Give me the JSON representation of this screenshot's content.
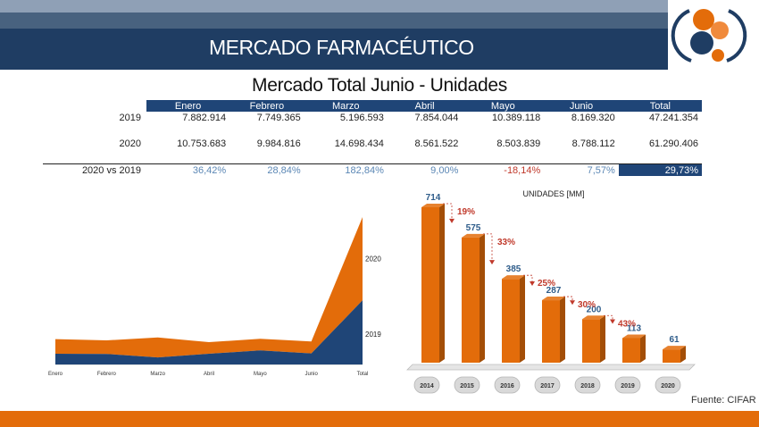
{
  "header": {
    "title": "MERCADO FARMACÉUTICO"
  },
  "subtitle": "Mercado Total Junio - Unidades",
  "table": {
    "columns": [
      "Enero",
      "Febrero",
      "Marzo",
      "Abril",
      "Mayo",
      "Junio",
      "Total"
    ],
    "rows": [
      {
        "label": "2019",
        "values": [
          "7.882.914",
          "7.749.365",
          "5.196.593",
          "7.854.044",
          "10.389.118",
          "8.169.320",
          "47.241.354"
        ]
      },
      {
        "label": "2020",
        "values": [
          "10.753.683",
          "9.984.816",
          "14.698.434",
          "8.561.522",
          "8.503.839",
          "8.788.112",
          "61.290.406"
        ]
      }
    ],
    "pct_row": {
      "label": "2020 vs 2019",
      "values": [
        "36,42%",
        "28,84%",
        "182,84%",
        "9,00%",
        "-18,14%",
        "7,57%",
        "29,73%"
      ]
    }
  },
  "chart_data": [
    {
      "type": "area",
      "stacked": true,
      "categories": [
        "Enero",
        "Febrero",
        "Marzo",
        "Abril",
        "Mayo",
        "Junio",
        "Total"
      ],
      "series": [
        {
          "name": "2019",
          "values": [
            7882914,
            7749365,
            5196593,
            7854044,
            10389118,
            8169320,
            47241354
          ],
          "color": "#1f4577"
        },
        {
          "name": "2020",
          "values": [
            10753683,
            9984816,
            14698434,
            8561522,
            8503839,
            8788112,
            61290406
          ],
          "color": "#e36c0a"
        }
      ],
      "legend": "labels at right end"
    },
    {
      "type": "bar",
      "title": "UNIDADES [MM]",
      "categories": [
        "2014",
        "2015",
        "2016",
        "2017",
        "2018",
        "2019",
        "2020"
      ],
      "values": [
        714,
        575,
        385,
        287,
        200,
        113,
        61
      ],
      "value_labels": [
        "714",
        "575",
        "385",
        "287",
        "200",
        "113",
        "61"
      ],
      "annotations": [
        "19%",
        "33%",
        "25%",
        "30%",
        "43%"
      ],
      "bar_color": "#e36c0a",
      "annotation_color": "#c0392b",
      "label_color": "#2e5c8a"
    }
  ],
  "source": "Fuente: CIFAR"
}
